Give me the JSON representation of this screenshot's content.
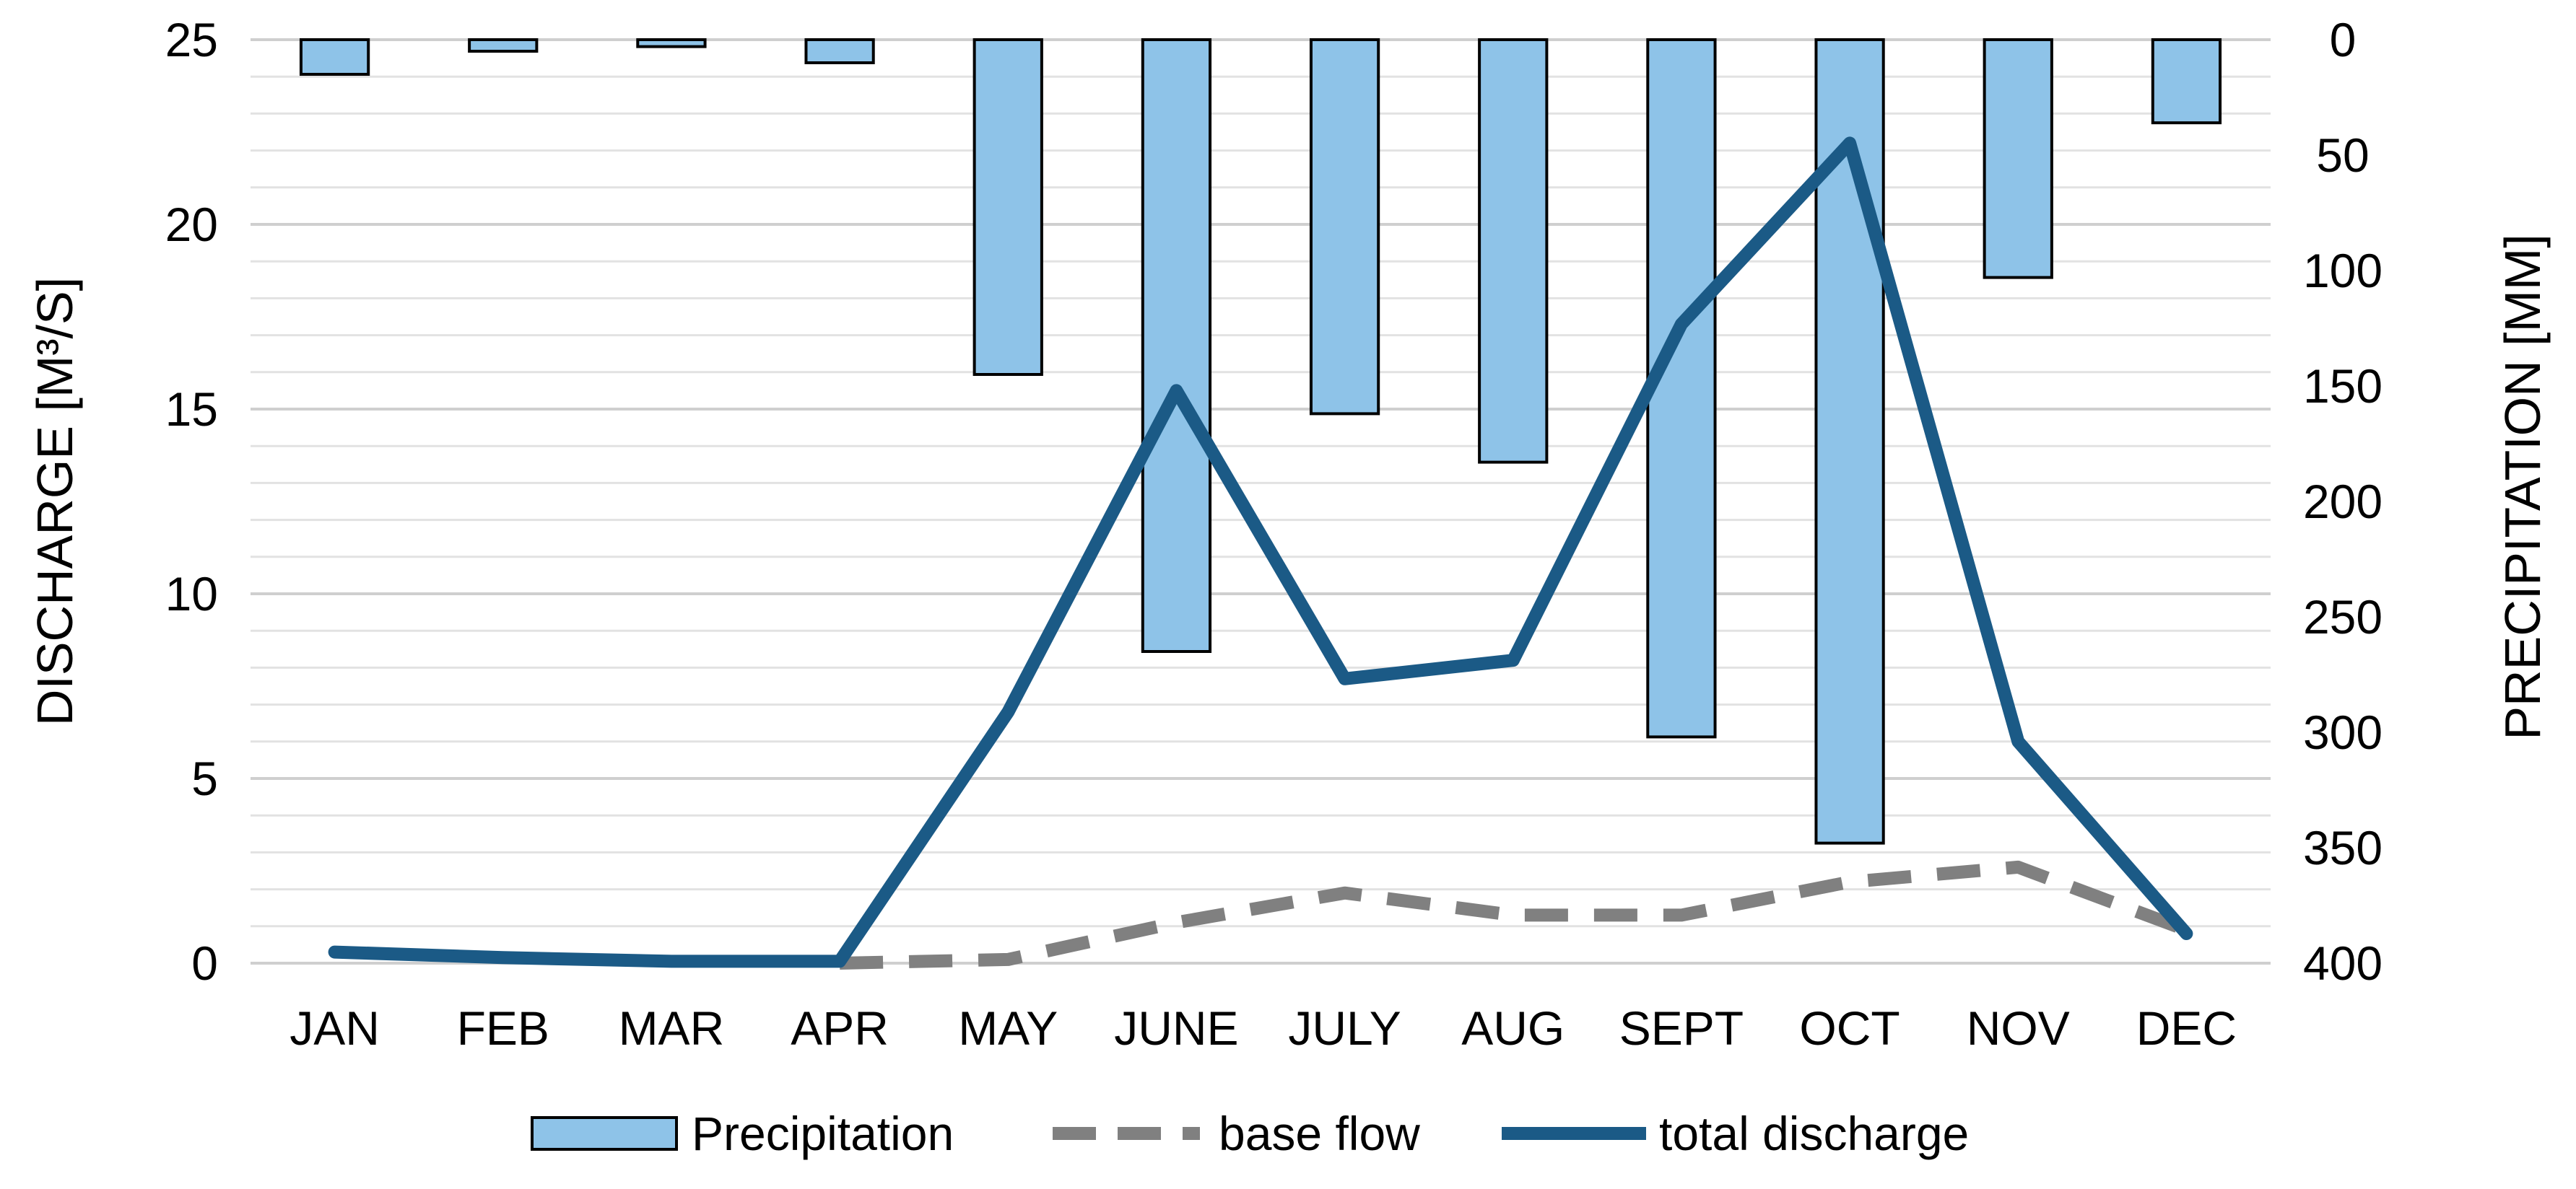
{
  "chart_data": {
    "type": "bar+line",
    "categories": [
      "JAN",
      "FEB",
      "MAR",
      "APR",
      "MAY",
      "JUNE",
      "JULY",
      "AUG",
      "SEPT",
      "OCT",
      "NOV",
      "DEC"
    ],
    "left_axis": {
      "label": "DISCHARGE  [M³/S]",
      "range": [
        0,
        25
      ],
      "ticks": [
        0,
        5,
        10,
        15,
        20,
        25
      ],
      "minor_step": 1
    },
    "right_axis": {
      "label": "PRECIPITATION [MM]",
      "range": [
        0,
        400
      ],
      "inverted": true,
      "ticks": [
        0,
        50,
        100,
        150,
        200,
        250,
        300,
        350,
        400
      ]
    },
    "series": [
      {
        "name": "Precipitation",
        "kind": "bar",
        "axis": "right",
        "color": "#8EC3E8",
        "edge_color": "#000000",
        "values": [
          15,
          5,
          3,
          10,
          145,
          265,
          162,
          183,
          302,
          348,
          103,
          36
        ]
      },
      {
        "name": "base flow",
        "kind": "line",
        "axis": "left",
        "style": "dashed",
        "color": "#808080",
        "values": [
          null,
          null,
          null,
          0,
          0.1,
          1.1,
          1.9,
          1.3,
          1.3,
          2.2,
          2.6,
          0.9
        ]
      },
      {
        "name": "total discharge",
        "kind": "line",
        "axis": "left",
        "style": "solid",
        "color": "#1B5A86",
        "values": [
          0.3,
          0.15,
          0.05,
          0.05,
          6.8,
          15.5,
          7.7,
          8.2,
          17.3,
          22.2,
          6.0,
          0.8
        ]
      }
    ],
    "legend": {
      "position": "bottom",
      "entries": [
        "Precipitation",
        "base flow",
        "total discharge"
      ]
    },
    "grid": "horizontal"
  }
}
